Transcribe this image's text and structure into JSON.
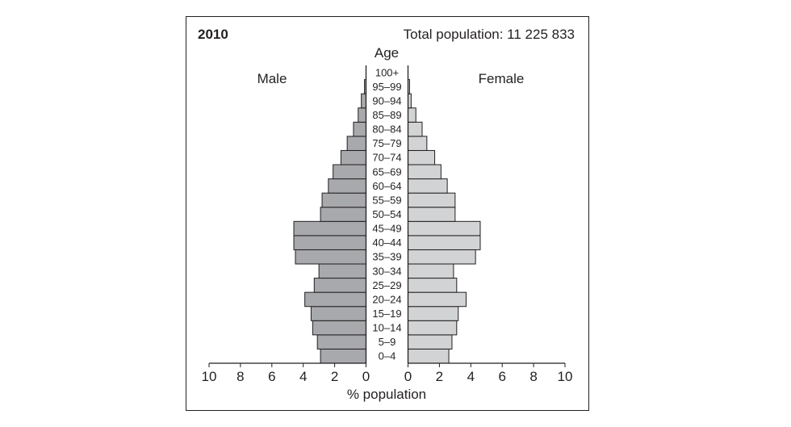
{
  "chart_data": {
    "type": "bar",
    "subtype": "population-pyramid",
    "year_label": "2010",
    "total_label": "Total population: 11 225 833",
    "category_axis_label": "Age",
    "xlabel": "% population",
    "left_series_label": "Male",
    "right_series_label": "Female",
    "xlim": [
      0,
      10
    ],
    "x_ticks": [
      "10",
      "8",
      "6",
      "4",
      "2",
      "0"
    ],
    "x_ticks_right": [
      "0",
      "2",
      "4",
      "6",
      "8",
      "10"
    ],
    "grid": false,
    "categories": [
      "0–4",
      "5–9",
      "10–14",
      "15–19",
      "20–24",
      "25–29",
      "30–34",
      "35–39",
      "40–44",
      "45–49",
      "50–54",
      "55–59",
      "60–64",
      "65–69",
      "70–74",
      "75–79",
      "80–84",
      "85–89",
      "90–94",
      "95–99",
      "100+"
    ],
    "series": [
      {
        "name": "Male",
        "color": "#a7a9ac",
        "values": [
          2.9,
          3.1,
          3.4,
          3.5,
          3.9,
          3.3,
          3.0,
          4.5,
          4.6,
          4.6,
          2.9,
          2.8,
          2.4,
          2.1,
          1.6,
          1.2,
          0.8,
          0.5,
          0.3,
          0.1,
          0.0
        ]
      },
      {
        "name": "Female",
        "color": "#d1d3d4",
        "values": [
          2.6,
          2.8,
          3.1,
          3.2,
          3.7,
          3.1,
          2.9,
          4.3,
          4.6,
          4.6,
          3.0,
          3.0,
          2.5,
          2.1,
          1.7,
          1.2,
          0.9,
          0.5,
          0.2,
          0.1,
          0.0
        ]
      }
    ]
  }
}
